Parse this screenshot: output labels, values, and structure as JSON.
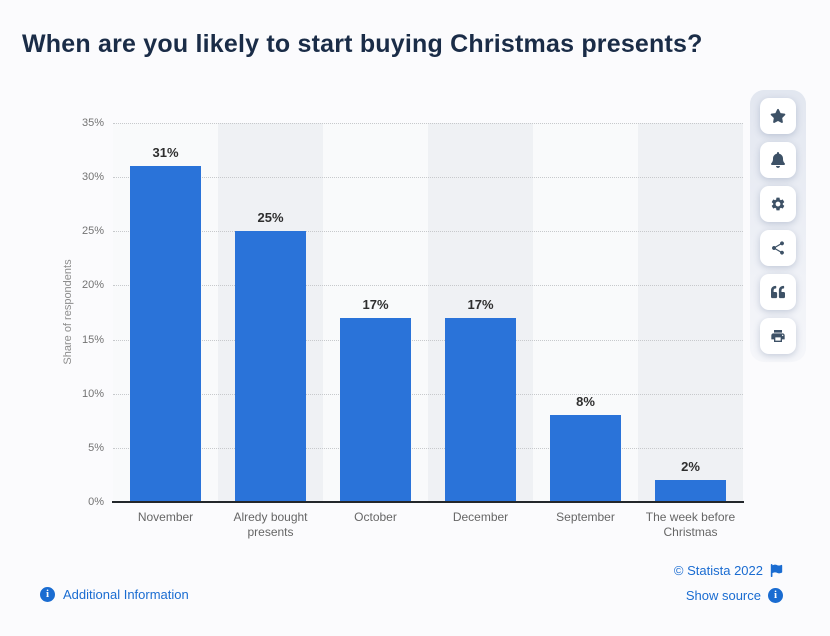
{
  "page": {
    "title": "When are you likely to start buying Christmas presents?"
  },
  "chart_data": {
    "type": "bar",
    "categories": [
      "November",
      "Alredy bought presents",
      "October",
      "December",
      "September",
      "The week before Christmas"
    ],
    "values": [
      31,
      25,
      17,
      17,
      8,
      2
    ],
    "value_labels": [
      "31%",
      "25%",
      "17%",
      "17%",
      "8%",
      "2%"
    ],
    "title": "",
    "xlabel": "",
    "ylabel": "Share of respondents",
    "ylim": [
      0,
      35
    ],
    "ytick_values": [
      35,
      30,
      25,
      20,
      15,
      10,
      5,
      0
    ],
    "ytick_labels": [
      "35%",
      "30%",
      "25%",
      "20%",
      "15%",
      "10%",
      "5%",
      "0%"
    ],
    "grid": "dotted-horizontal",
    "legend": "none",
    "bar_color": "#2a73d9",
    "band_color_light": "#f9fafb",
    "band_color_dark": "#eff1f4"
  },
  "toolbar": {
    "items": [
      {
        "name": "favorite",
        "icon": "star-icon"
      },
      {
        "name": "notifications",
        "icon": "bell-icon"
      },
      {
        "name": "settings",
        "icon": "gear-icon"
      },
      {
        "name": "share",
        "icon": "share-icon"
      },
      {
        "name": "cite",
        "icon": "quote-icon"
      },
      {
        "name": "print",
        "icon": "printer-icon"
      }
    ]
  },
  "footer": {
    "additional_information": "Additional Information",
    "copyright": "© Statista 2022",
    "show_source": "Show source"
  },
  "icons": {
    "info_glyph": "i"
  },
  "colors": {
    "title_text": "#1a2c47",
    "link_blue": "#1a6cd1",
    "toolbar_icon": "#3d5166",
    "axis_text": "#737373",
    "category_text": "#666666",
    "value_label_text": "#2e2e2e",
    "baseline": "#23272b"
  }
}
